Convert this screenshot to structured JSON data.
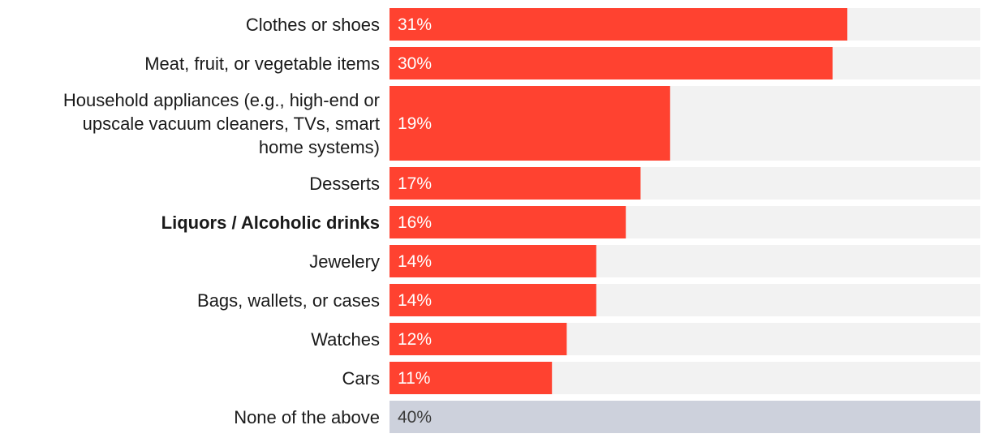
{
  "chart_data": {
    "type": "bar",
    "orientation": "horizontal",
    "title": "",
    "xlabel": "",
    "ylabel": "",
    "xlim": [
      0,
      40
    ],
    "grid": false,
    "legend": "none",
    "colors": {
      "bar": "#ff4230",
      "bar_highlight": "#ff4230",
      "bar_none": "#cdd1dc",
      "track": "#f2f2f2",
      "value_text_on_bar": "#ffffff",
      "value_text_none": "#3a3a3a",
      "label_text": "#1a1a1a"
    },
    "categories": [
      {
        "label": [
          "Clothes or shoes"
        ],
        "value": 31,
        "value_label": "31%",
        "bold": false,
        "style": "bar"
      },
      {
        "label": [
          "Meat, fruit, or vegetable items"
        ],
        "value": 30,
        "value_label": "30%",
        "bold": false,
        "style": "bar"
      },
      {
        "label": [
          "Household appliances (e.g., high-end or",
          "upscale vacuum cleaners, TVs, smart",
          "home systems)"
        ],
        "value": 19,
        "value_label": "19%",
        "bold": false,
        "style": "bar"
      },
      {
        "label": [
          "Desserts"
        ],
        "value": 17,
        "value_label": "17%",
        "bold": false,
        "style": "bar"
      },
      {
        "label": [
          "Liquors / Alcoholic drinks"
        ],
        "value": 16,
        "value_label": "16%",
        "bold": true,
        "style": "bar"
      },
      {
        "label": [
          "Jewelery"
        ],
        "value": 14,
        "value_label": "14%",
        "bold": false,
        "style": "bar"
      },
      {
        "label": [
          "Bags, wallets, or cases"
        ],
        "value": 14,
        "value_label": "14%",
        "bold": false,
        "style": "bar"
      },
      {
        "label": [
          "Watches"
        ],
        "value": 12,
        "value_label": "12%",
        "bold": false,
        "style": "bar"
      },
      {
        "label": [
          "Cars"
        ],
        "value": 11,
        "value_label": "11%",
        "bold": false,
        "style": "bar"
      },
      {
        "label": [
          "None of the above"
        ],
        "value": 40,
        "value_label": "40%",
        "bold": false,
        "style": "none"
      }
    ]
  }
}
